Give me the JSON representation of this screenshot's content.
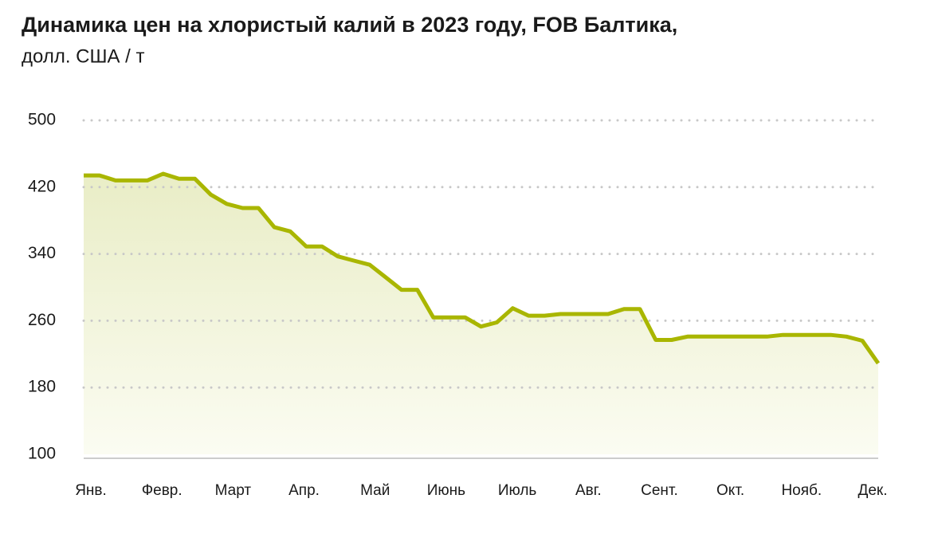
{
  "chart_data": {
    "type": "line",
    "title": "Динамика цен на хлористый калий в 2023 году, FOB Балтика,",
    "subtitle": "долл. США / т",
    "months": [
      "Янв.",
      "Февр.",
      "Март",
      "Апр.",
      "Май",
      "Июнь",
      "Июль",
      "Авг.",
      "Сент.",
      "Окт.",
      "Нояб.",
      "Дек."
    ],
    "values": [
      434,
      434,
      428,
      428,
      428,
      436,
      430,
      430,
      411,
      400,
      395,
      395,
      372,
      367,
      349,
      349,
      337,
      332,
      327,
      312,
      297,
      297,
      264,
      264,
      264,
      253,
      258,
      275,
      266,
      266,
      268,
      268,
      268,
      268,
      274,
      274,
      237,
      237,
      241,
      241,
      241,
      241,
      241,
      241,
      243,
      243,
      243,
      243,
      241,
      236,
      209
    ],
    "color": "#a9b600",
    "ylim": [
      100,
      500
    ],
    "yticks": [
      100,
      180,
      260,
      340,
      420,
      500
    ],
    "grid": true
  }
}
